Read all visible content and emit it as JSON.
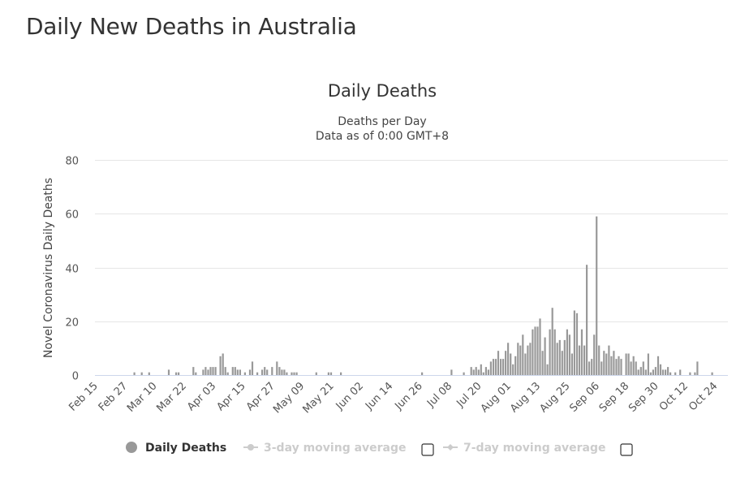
{
  "page_title": "Daily New Deaths in Australia",
  "chart_data": {
    "type": "bar",
    "title": "Daily Deaths",
    "subtitle": [
      "Deaths per Day",
      "Data as of 0:00 GMT+8"
    ],
    "xlabel": "",
    "ylabel": "Novel Coronavirus Daily Deaths",
    "ylim": [
      0,
      80
    ],
    "yticks": [
      "0",
      "20",
      "40",
      "60",
      "80"
    ],
    "ytick_values": [
      0,
      20,
      40,
      60,
      80
    ],
    "grid": true,
    "x_start": "Feb 15",
    "x_end": "Oct 24",
    "xticks": [
      "Feb 15",
      "Feb 27",
      "Mar 10",
      "Mar 22",
      "Apr 03",
      "Apr 15",
      "Apr 27",
      "May 09",
      "May 21",
      "Jun 02",
      "Jun 14",
      "Jun 26",
      "Jul 08",
      "Jul 20",
      "Aug 01",
      "Aug 13",
      "Aug 25",
      "Sep 06",
      "Sep 18",
      "Sep 30",
      "Oct 12",
      "Oct 24"
    ],
    "xtick_every_days": 12,
    "bar_color": "#999999",
    "values": [
      0,
      0,
      0,
      0,
      0,
      0,
      0,
      0,
      0,
      0,
      0,
      0,
      0,
      0,
      0,
      0,
      1,
      0,
      0,
      1,
      0,
      0,
      1,
      0,
      0,
      0,
      0,
      0,
      0,
      0,
      2,
      0,
      0,
      1,
      1,
      0,
      0,
      0,
      0,
      0,
      3,
      1,
      0,
      0,
      2,
      3,
      2,
      3,
      3,
      3,
      0,
      7,
      8,
      3,
      1,
      0,
      3,
      3,
      2,
      2,
      0,
      1,
      0,
      2,
      5,
      0,
      1,
      0,
      2,
      3,
      2,
      0,
      3,
      0,
      5,
      3,
      2,
      2,
      1,
      0,
      1,
      1,
      1,
      0,
      0,
      0,
      0,
      0,
      0,
      0,
      1,
      0,
      0,
      0,
      0,
      1,
      1,
      0,
      0,
      0,
      1,
      0,
      0,
      0,
      0,
      0,
      0,
      0,
      0,
      0,
      0,
      0,
      0,
      0,
      0,
      0,
      0,
      0,
      0,
      0,
      0,
      0,
      0,
      0,
      0,
      0,
      0,
      0,
      0,
      0,
      0,
      0,
      0,
      1,
      0,
      0,
      0,
      0,
      0,
      0,
      0,
      0,
      0,
      0,
      0,
      2,
      0,
      0,
      0,
      0,
      1,
      0,
      0,
      3,
      2,
      3,
      2,
      4,
      1,
      3,
      2,
      5,
      6,
      6,
      9,
      6,
      6,
      9,
      12,
      8,
      4,
      7,
      12,
      11,
      15,
      8,
      11,
      12,
      17,
      18,
      18,
      21,
      9,
      14,
      4,
      17,
      25,
      17,
      12,
      13,
      9,
      13,
      17,
      15,
      8,
      24,
      23,
      11,
      17,
      11,
      41,
      5,
      6,
      15,
      59,
      11,
      5,
      9,
      8,
      11,
      7,
      9,
      6,
      7,
      6,
      0,
      8,
      8,
      5,
      7,
      5,
      2,
      3,
      5,
      2,
      8,
      1,
      2,
      3,
      7,
      4,
      2,
      2,
      3,
      1,
      0,
      1,
      0,
      2,
      0,
      0,
      0,
      1,
      0,
      1,
      5,
      0,
      0,
      0,
      0,
      0,
      1,
      0
    ],
    "legend": {
      "placement": "bottom",
      "items": [
        {
          "label": "Daily Deaths",
          "active": true,
          "color": "#999999"
        },
        {
          "label": "3-day moving average",
          "active": false,
          "color": "#cccccc",
          "checked": false
        },
        {
          "label": "7-day moving average",
          "active": false,
          "color": "#cccccc",
          "checked": false
        }
      ]
    }
  }
}
